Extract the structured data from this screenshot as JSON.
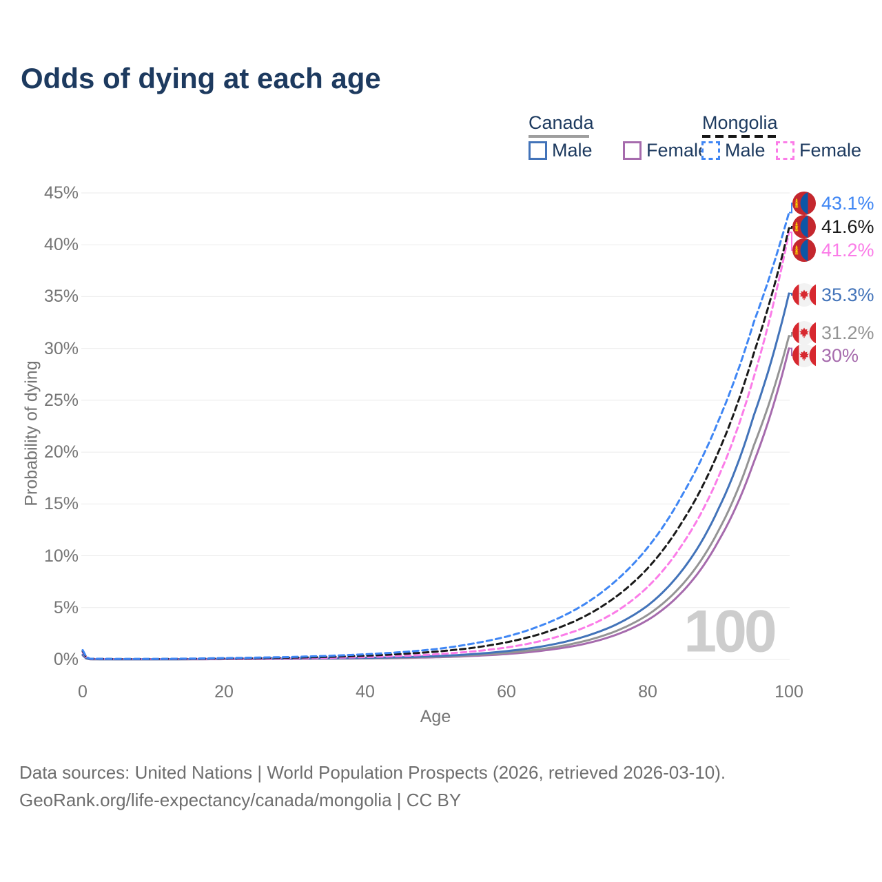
{
  "title": "Odds of dying at each age",
  "watermark": "100",
  "legend": {
    "groups": [
      {
        "name": "Canada",
        "line_style": "solid",
        "underline_color": "#9e9e9e",
        "items": [
          {
            "label": "Male",
            "color": "#4273b9",
            "dashed": false
          },
          {
            "label": "Female",
            "color": "#a66bad",
            "dashed": false
          }
        ]
      },
      {
        "name": "Mongolia",
        "line_style": "dashed",
        "underline_color": "#161616",
        "items": [
          {
            "label": "Male",
            "color": "#3f86f4",
            "dashed": true
          },
          {
            "label": "Female",
            "color": "#fb7ce8",
            "dashed": true
          }
        ]
      }
    ]
  },
  "chart_data": {
    "type": "line",
    "title": "Odds of dying at each age",
    "xlabel": "Age",
    "ylabel": "Probability of dying",
    "xlim": [
      0,
      100
    ],
    "ylim": [
      0,
      45
    ],
    "x_ticks": [
      "0",
      "20",
      "40",
      "60",
      "80",
      "100"
    ],
    "x_tick_values": [
      0,
      20,
      40,
      60,
      80,
      100
    ],
    "y_ticks": [
      "0%",
      "5%",
      "10%",
      "15%",
      "20%",
      "25%",
      "30%",
      "35%",
      "40%",
      "45%"
    ],
    "y_tick_values": [
      0,
      5,
      10,
      15,
      20,
      25,
      30,
      35,
      40,
      45
    ],
    "grid": "horizontal",
    "legend_position": "top-right",
    "ages": [
      0,
      1,
      5,
      10,
      15,
      20,
      25,
      30,
      35,
      40,
      45,
      50,
      55,
      60,
      65,
      70,
      75,
      80,
      85,
      90,
      95,
      100
    ],
    "series": [
      {
        "name": "Mongolia Male",
        "country": "Mongolia",
        "sex": "Male",
        "color": "#3f86f4",
        "dashed": true,
        "flag": "mongolia",
        "end_label": "43.1%",
        "end_value": 43.1,
        "values_pct": [
          0.9,
          0.07,
          0.05,
          0.05,
          0.08,
          0.13,
          0.18,
          0.25,
          0.35,
          0.5,
          0.7,
          1.0,
          1.5,
          2.2,
          3.3,
          4.9,
          7.3,
          10.8,
          16.0,
          23.0,
          32.5,
          43.1
        ]
      },
      {
        "name": "Mongolia Both sexes",
        "country": "Mongolia",
        "sex": "All",
        "color": "#1a1a1a",
        "dashed": true,
        "flag": "mongolia",
        "end_label": "41.6%",
        "end_value": 41.6,
        "values_pct": [
          0.8,
          0.06,
          0.04,
          0.04,
          0.06,
          0.09,
          0.13,
          0.18,
          0.25,
          0.36,
          0.52,
          0.75,
          1.1,
          1.65,
          2.5,
          3.8,
          5.8,
          8.8,
          13.4,
          20.0,
          29.5,
          41.6
        ]
      },
      {
        "name": "Mongolia Female",
        "country": "Mongolia",
        "sex": "Female",
        "color": "#fb7ce8",
        "dashed": true,
        "flag": "mongolia",
        "end_label": "41.2%",
        "end_value": 41.2,
        "values_pct": [
          0.7,
          0.05,
          0.03,
          0.03,
          0.04,
          0.06,
          0.08,
          0.11,
          0.16,
          0.23,
          0.33,
          0.5,
          0.76,
          1.15,
          1.8,
          2.8,
          4.4,
          7.0,
          11.2,
          17.6,
          27.2,
          41.2
        ]
      },
      {
        "name": "Canada Male",
        "country": "Canada",
        "sex": "Male",
        "color": "#4273b9",
        "dashed": false,
        "flag": "canada",
        "end_label": "35.3%",
        "end_value": 35.3,
        "values_pct": [
          0.45,
          0.03,
          0.012,
          0.012,
          0.03,
          0.06,
          0.08,
          0.095,
          0.115,
          0.15,
          0.21,
          0.32,
          0.5,
          0.8,
          1.25,
          2.0,
          3.2,
          5.2,
          8.7,
          14.5,
          23.5,
          35.3
        ]
      },
      {
        "name": "Canada Both sexes",
        "country": "Canada",
        "sex": "All",
        "color": "#949494",
        "dashed": false,
        "flag": "canada",
        "end_label": "31.2%",
        "end_value": 31.2,
        "values_pct": [
          0.42,
          0.025,
          0.01,
          0.01,
          0.022,
          0.045,
          0.06,
          0.073,
          0.09,
          0.12,
          0.17,
          0.26,
          0.41,
          0.64,
          1.0,
          1.6,
          2.6,
          4.3,
          7.3,
          12.4,
          20.6,
          31.2
        ]
      },
      {
        "name": "Canada Female",
        "country": "Canada",
        "sex": "Female",
        "color": "#a66bad",
        "dashed": false,
        "flag": "canada",
        "end_label": "30%",
        "end_value": 30.0,
        "values_pct": [
          0.4,
          0.02,
          0.009,
          0.009,
          0.016,
          0.03,
          0.042,
          0.055,
          0.07,
          0.1,
          0.14,
          0.21,
          0.33,
          0.52,
          0.84,
          1.35,
          2.25,
          3.8,
          6.6,
          11.4,
          19.0,
          30.0
        ]
      }
    ],
    "watermark": "100"
  },
  "footer": {
    "line1": "Data sources: United Nations | World Population Prospects (2026, retrieved 2026-03-10).",
    "line2": "GeoRank.org/life-expectancy/canada/mongolia | CC BY"
  }
}
